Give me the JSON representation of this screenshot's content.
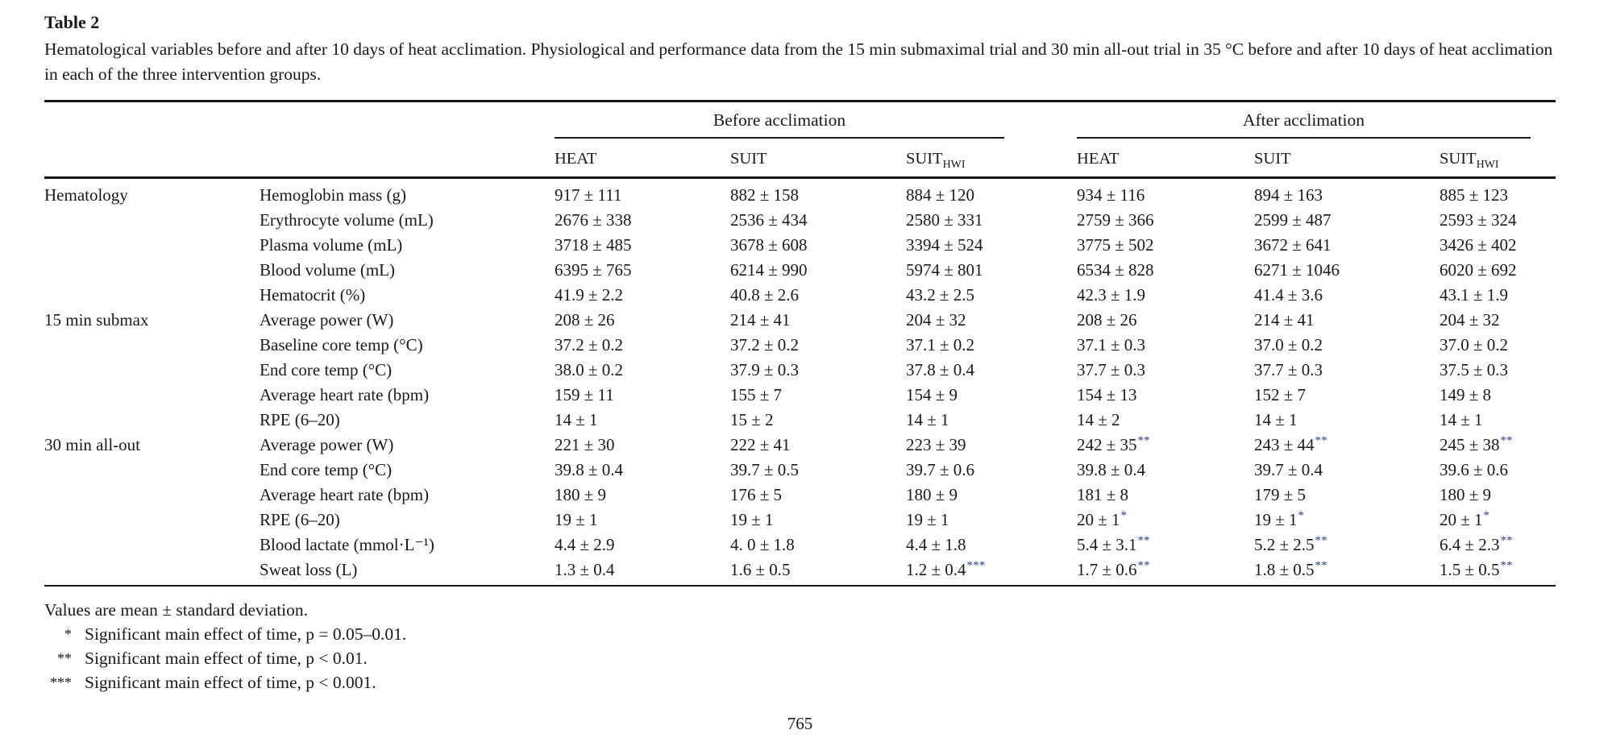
{
  "title": "Table 2",
  "caption": "Hematological variables before and after 10 days of heat acclimation. Physiological and performance data from the 15 min submaximal trial and 30 min all-out trial in 35 °C before and after 10 days of heat acclimation in each of the three intervention groups.",
  "table": {
    "group_headers": [
      {
        "label": "Before acclimation"
      },
      {
        "label": "After acclimation"
      }
    ],
    "column_headers": [
      {
        "label": "HEAT"
      },
      {
        "label": "SUIT"
      },
      {
        "label": "SUIT",
        "sub": "HWI"
      },
      {
        "label": "HEAT"
      },
      {
        "label": "SUIT"
      },
      {
        "label": "SUIT",
        "sub": "HWI"
      }
    ],
    "sections": [
      {
        "name": "Hematology",
        "rows": [
          {
            "variable": "Hemoglobin mass (g)",
            "values": [
              "917 ± 111",
              "882 ± 158",
              "884 ± 120",
              "934 ± 116",
              "894 ± 163",
              "885 ± 123"
            ]
          },
          {
            "variable": "Erythrocyte volume (mL)",
            "values": [
              "2676 ± 338",
              "2536 ± 434",
              "2580 ± 331",
              "2759 ± 366",
              "2599 ± 487",
              "2593 ± 324"
            ]
          },
          {
            "variable": "Plasma volume (mL)",
            "values": [
              "3718 ± 485",
              "3678 ± 608",
              "3394 ± 524",
              "3775 ± 502",
              "3672 ± 641",
              "3426 ± 402"
            ]
          },
          {
            "variable": "Blood volume (mL)",
            "values": [
              "6395 ± 765",
              "6214 ± 990",
              "5974 ± 801",
              "6534 ± 828",
              "6271 ± 1046",
              "6020 ± 692"
            ]
          },
          {
            "variable": "Hematocrit (%)",
            "values": [
              "41.9 ± 2.2",
              "40.8 ± 2.6",
              "43.2 ± 2.5",
              "42.3 ± 1.9",
              "41.4 ± 3.6",
              "43.1 ± 1.9"
            ]
          }
        ]
      },
      {
        "name": "15 min submax",
        "rows": [
          {
            "variable": "Average power (W)",
            "values": [
              "208 ± 26",
              "214 ± 41",
              "204 ± 32",
              "208 ± 26",
              "214 ± 41",
              "204 ± 32"
            ]
          },
          {
            "variable": "Baseline core temp (°C)",
            "values": [
              "37.2 ± 0.2",
              "37.2 ± 0.2",
              "37.1 ± 0.2",
              "37.1 ± 0.3",
              "37.0 ± 0.2",
              "37.0 ± 0.2"
            ]
          },
          {
            "variable": "End core temp (°C)",
            "values": [
              "38.0 ± 0.2",
              "37.9 ± 0.3",
              "37.8 ± 0.4",
              "37.7 ± 0.3",
              "37.7 ± 0.3",
              "37.5 ± 0.3"
            ]
          },
          {
            "variable": "Average heart rate (bpm)",
            "values": [
              "159 ± 11",
              "155 ± 7",
              "154 ± 9",
              "154 ± 13",
              "152 ± 7",
              "149 ± 8"
            ]
          },
          {
            "variable": "RPE (6–20)",
            "values": [
              "14 ± 1",
              "15 ± 2",
              "14 ± 1",
              "14 ± 2",
              "14 ± 1",
              "14 ± 1"
            ]
          }
        ]
      },
      {
        "name": "30 min all-out",
        "rows": [
          {
            "variable": "Average power (W)",
            "values": [
              "221 ± 30",
              "222 ± 41",
              "223 ± 39",
              "242 ± 35**",
              "243 ± 44**",
              "245 ± 38**"
            ]
          },
          {
            "variable": "End core temp (°C)",
            "values": [
              "39.8 ± 0.4",
              "39.7 ± 0.5",
              "39.7 ± 0.6",
              "39.8 ± 0.4",
              "39.7 ± 0.4",
              "39.6 ± 0.6"
            ]
          },
          {
            "variable": "Average heart rate (bpm)",
            "values": [
              "180 ± 9",
              "176 ± 5",
              "180 ± 9",
              "181 ± 8",
              "179 ± 5",
              "180 ± 9"
            ]
          },
          {
            "variable": "RPE (6–20)",
            "values": [
              "19 ± 1",
              "19 ± 1",
              "19 ± 1",
              "20 ± 1*",
              "19 ± 1*",
              "20 ± 1*"
            ]
          },
          {
            "variable": "Blood lactate (mmol·L⁻¹)",
            "values": [
              "4.4 ± 2.9",
              "4. 0 ± 1.8",
              "4.4 ± 1.8",
              "5.4 ± 3.1**",
              "5.2 ± 2.5**",
              "6.4 ± 2.3**"
            ]
          },
          {
            "variable": "Sweat loss (L)",
            "values": [
              "1.3 ± 0.4",
              "1.6 ± 0.5",
              "1.2 ± 0.4***",
              "1.7 ± 0.6**",
              "1.8 ± 0.5**",
              "1.5 ± 0.5**"
            ]
          }
        ]
      }
    ]
  },
  "footnotes": {
    "note": "Values are mean ± standard deviation.",
    "items": [
      {
        "marker": "*",
        "text": "Significant main effect of time, p = 0.05–0.01."
      },
      {
        "marker": "**",
        "text": "Significant main effect of time, p < 0.01."
      },
      {
        "marker": "***",
        "text": "Significant main effect of time, p < 0.001."
      }
    ]
  },
  "page": {
    "number": "765"
  },
  "colors": {
    "text": "#1a1a1a",
    "significance_marker": "#2b3a8f",
    "rule": "#161616"
  }
}
